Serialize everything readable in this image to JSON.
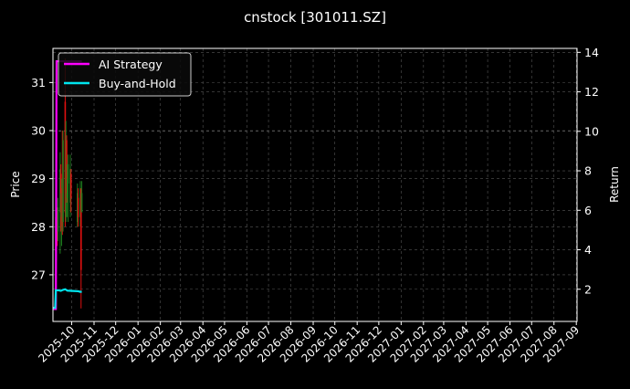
{
  "chart_data": {
    "type": "line",
    "title": "cnstock [301011.SZ]",
    "ylabel_left": "Price",
    "ylabel_right": "Return",
    "xlim": [
      "2025-09-05",
      "2027-09-02"
    ],
    "ylim_left": [
      26.03,
      31.71
    ],
    "ylim_right": [
      0.37,
      14.2
    ],
    "grid": true,
    "legend_position": "top-left",
    "x_ticks": [
      "2025-10",
      "2025-11",
      "2025-12",
      "2026-01",
      "2026-02",
      "2026-03",
      "2026-04",
      "2026-05",
      "2026-06",
      "2026-07",
      "2026-08",
      "2026-09",
      "2026-10",
      "2026-11",
      "2026-12",
      "2027-01",
      "2027-02",
      "2027-03",
      "2027-04",
      "2027-05",
      "2027-06",
      "2027-07",
      "2027-08",
      "2027-09"
    ],
    "y_ticks_left": [
      27,
      28,
      29,
      30,
      31
    ],
    "y_ticks_right": [
      2,
      4,
      6,
      8,
      10,
      12,
      14
    ],
    "colors": {
      "up": "#1e7d1e",
      "down": "#e01010",
      "ai": "#ff00ff",
      "bh": "#00e5ee",
      "background": "#000000",
      "grid": "#555555"
    },
    "candles": [
      {
        "date": "2025-09-09",
        "open": 28.2,
        "high": 28.3,
        "low": 27.3,
        "close": 27.5
      },
      {
        "date": "2025-09-10",
        "open": 27.6,
        "high": 28.3,
        "low": 27.3,
        "close": 28.1
      },
      {
        "date": "2025-09-11",
        "open": 28.0,
        "high": 28.4,
        "low": 27.6,
        "close": 27.9
      },
      {
        "date": "2025-09-12",
        "open": 27.9,
        "high": 28.6,
        "low": 27.7,
        "close": 28.4
      },
      {
        "date": "2025-09-15",
        "open": 28.3,
        "high": 29.55,
        "low": 27.44,
        "close": 29.2
      },
      {
        "date": "2025-09-16",
        "open": 29.1,
        "high": 29.3,
        "low": 27.9,
        "close": 28.3
      },
      {
        "date": "2025-09-17",
        "open": 28.2,
        "high": 29.0,
        "low": 27.6,
        "close": 28.7
      },
      {
        "date": "2025-09-18",
        "open": 28.8,
        "high": 30.0,
        "low": 27.83,
        "close": 28.0
      },
      {
        "date": "2025-09-19",
        "open": 28.1,
        "high": 30.0,
        "low": 27.9,
        "close": 29.8
      },
      {
        "date": "2025-09-22",
        "open": 30.6,
        "high": 31.5,
        "low": 28.0,
        "close": 28.3
      },
      {
        "date": "2025-09-23",
        "open": 28.2,
        "high": 30.2,
        "low": 28.1,
        "close": 29.9
      },
      {
        "date": "2025-09-24",
        "open": 29.8,
        "high": 29.9,
        "low": 28.5,
        "close": 28.7
      },
      {
        "date": "2025-09-25",
        "open": 28.6,
        "high": 29.3,
        "low": 28.2,
        "close": 29.0
      },
      {
        "date": "2025-09-26",
        "open": 28.9,
        "high": 29.5,
        "low": 28.1,
        "close": 29.3
      },
      {
        "date": "2025-09-29",
        "open": 28.5,
        "high": 29.5,
        "low": 28.2,
        "close": 29.2
      },
      {
        "date": "2025-09-30",
        "open": 29.1,
        "high": 29.2,
        "low": 28.3,
        "close": 28.6
      },
      {
        "date": "2025-10-09",
        "open": 28.1,
        "high": 28.9,
        "low": 28.0,
        "close": 28.7
      },
      {
        "date": "2025-10-10",
        "open": 28.6,
        "high": 28.8,
        "low": 28.0,
        "close": 28.2
      },
      {
        "date": "2025-10-13",
        "open": 28.2,
        "high": 28.95,
        "low": 28.0,
        "close": 28.8
      },
      {
        "date": "2025-10-14",
        "open": 28.78,
        "high": 28.8,
        "low": 26.3,
        "close": 27.1
      },
      {
        "date": "2025-10-15",
        "open": 28.3,
        "high": 28.95,
        "low": 28.3,
        "close": 28.7
      }
    ],
    "series": [
      {
        "name": "AI Strategy",
        "axis": "right",
        "x": [
          "2025-09-05",
          "2025-09-09",
          "2025-09-10",
          "2025-10-15"
        ],
        "values": [
          1.0,
          1.0,
          13.55,
          13.55
        ]
      },
      {
        "name": "Buy-and-Hold",
        "axis": "right",
        "x": [
          "2025-09-05",
          "2025-09-08",
          "2025-09-09",
          "2025-09-12",
          "2025-09-16",
          "2025-09-19",
          "2025-09-22",
          "2025-09-25",
          "2025-09-30",
          "2025-10-10",
          "2025-10-13",
          "2025-10-15"
        ],
        "values": [
          1.06,
          1.06,
          1.94,
          1.95,
          1.92,
          1.97,
          2.0,
          1.93,
          1.92,
          1.9,
          1.87,
          1.88
        ]
      }
    ]
  }
}
